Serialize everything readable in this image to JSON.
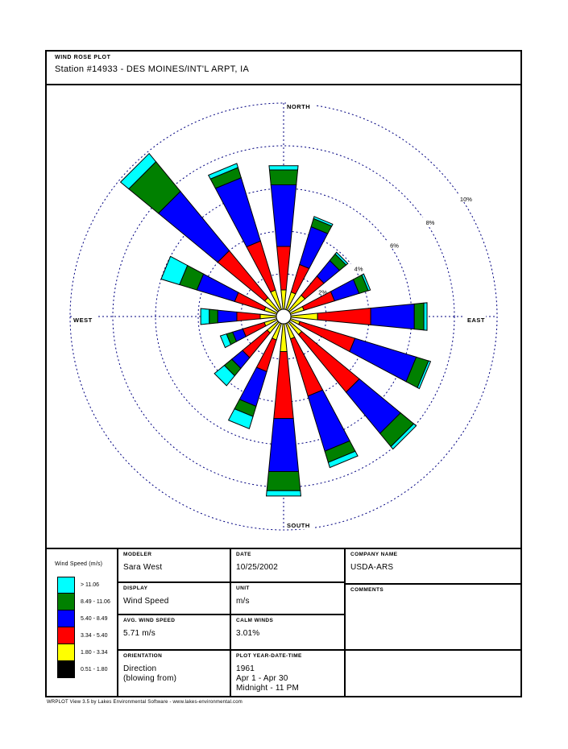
{
  "title_block": {
    "caption": "WIND ROSE PLOT",
    "station": "Station #14933 - DES MOINES/INT'L ARPT, IA"
  },
  "chart_data": {
    "type": "wind_rose",
    "title": "Wind Rose - Station #14933 Des Moines Int'l Arpt, IA",
    "units": "percent frequency by direction, colored by wind speed class (m/s)",
    "compass_labels": {
      "north": "NORTH",
      "east": "EAST",
      "south": "SOUTH",
      "west": "WEST"
    },
    "ring_values_pct": [
      2,
      4,
      6,
      8,
      10
    ],
    "ring_labels": [
      "2%",
      "4%",
      "6%",
      "8%",
      "10%"
    ],
    "ring_label_azimuth_deg": 57,
    "ring_color": "#000080",
    "calm_percent": "3.01%",
    "speed_bins": [
      {
        "range": "0.51 - 1.80",
        "color": "#000000"
      },
      {
        "range": "1.80 - 3.34",
        "color": "#FFFF00"
      },
      {
        "range": "3.34 - 5.40",
        "color": "#FF0000"
      },
      {
        "range": "5.40 - 8.49",
        "color": "#0000FF"
      },
      {
        "range": "8.49 - 11.06",
        "color": "#008000"
      },
      {
        "range": "> 11.06",
        "color": "#00FFFF"
      }
    ],
    "petal_note": "cum_pct = cumulative percent frequency at end of each bin: [base, yellow_end, red_end, blue_end, green_end, cyan_end]",
    "petals": [
      {
        "dir": "N",
        "cum_pct": [
          0.3,
          1.25,
          3.3,
          6.2,
          6.9,
          7.1
        ]
      },
      {
        "dir": "NNE",
        "cum_pct": [
          0.3,
          1.2,
          2.55,
          4.4,
          4.8,
          4.9
        ]
      },
      {
        "dir": "NE",
        "cum_pct": [
          0.3,
          1.3,
          2.45,
          3.4,
          3.8,
          3.9
        ]
      },
      {
        "dir": "ENE",
        "cum_pct": [
          0.3,
          1.0,
          2.5,
          3.7,
          4.15,
          4.25
        ]
      },
      {
        "dir": "E",
        "cum_pct": [
          0.3,
          1.6,
          4.1,
          6.15,
          6.6,
          6.75
        ]
      },
      {
        "dir": "ESE",
        "cum_pct": [
          0.3,
          0.8,
          3.5,
          6.5,
          7.1,
          7.2
        ]
      },
      {
        "dir": "SE",
        "cum_pct": [
          0.3,
          1.1,
          4.6,
          7.1,
          7.9,
          8.05
        ]
      },
      {
        "dir": "SSE",
        "cum_pct": [
          0.3,
          1.1,
          3.9,
          6.6,
          7.15,
          7.4
        ]
      },
      {
        "dir": "S",
        "cum_pct": [
          0.3,
          1.65,
          4.8,
          7.3,
          8.2,
          8.45
        ]
      },
      {
        "dir": "SSW",
        "cum_pct": [
          0.3,
          1.15,
          2.7,
          4.4,
          4.9,
          5.5
        ]
      },
      {
        "dir": "SW",
        "cum_pct": [
          0.3,
          1.0,
          2.5,
          3.15,
          3.6,
          4.2
        ]
      },
      {
        "dir": "WSW",
        "cum_pct": [
          0.3,
          0.95,
          2.0,
          2.5,
          2.8,
          3.1
        ]
      },
      {
        "dir": "W",
        "cum_pct": [
          0.3,
          1.1,
          2.2,
          3.1,
          3.5,
          3.9
        ]
      },
      {
        "dir": "WNW",
        "cum_pct": [
          0.3,
          0.95,
          2.4,
          4.25,
          5.1,
          6.0
        ]
      },
      {
        "dir": "NW",
        "cum_pct": [
          0.3,
          1.15,
          4.0,
          7.6,
          9.4,
          9.9
        ]
      },
      {
        "dir": "NNW",
        "cum_pct": [
          0.3,
          1.3,
          3.7,
          6.8,
          7.3,
          7.5
        ]
      }
    ]
  },
  "legend": {
    "title": "Wind Speed (m/s)",
    "entries": [
      {
        "label": "> 11.06",
        "color": "#00FFFF"
      },
      {
        "label": "8.49 - 11.06",
        "color": "#008000"
      },
      {
        "label": "5.40 - 8.49",
        "color": "#0000FF"
      },
      {
        "label": "3.34 - 5.40",
        "color": "#FF0000"
      },
      {
        "label": "1.80 - 3.34",
        "color": "#FFFF00"
      },
      {
        "label": "0.51 - 1.80",
        "color": "#000000"
      }
    ]
  },
  "table": {
    "modeler": {
      "label": "MODELER",
      "value": "Sara West"
    },
    "date": {
      "label": "DATE",
      "value": "10/25/2002"
    },
    "company": {
      "label": "COMPANY NAME",
      "value": "USDA-ARS"
    },
    "display": {
      "label": "DISPLAY",
      "value": "Wind Speed"
    },
    "unit": {
      "label": "UNIT",
      "value": "m/s"
    },
    "comments": {
      "label": "COMMENTS",
      "value": ""
    },
    "avg_speed": {
      "label": "AVG. WIND SPEED",
      "value": "5.71 m/s"
    },
    "calm_winds": {
      "label": "CALM WINDS",
      "value": "3.01%"
    },
    "orientation": {
      "label": "ORIENTATION",
      "value1": "Direction",
      "value2": "(blowing from)"
    },
    "plot_period": {
      "label": "PLOT YEAR-DATE-TIME",
      "value1": "1961",
      "value2": "Apr 1 - Apr 30",
      "value3": "Midnight  -  11 PM"
    }
  },
  "footer": "WRPLOT View 3.5 by Lakes Environmental Software - www.lakes-environmental.com"
}
